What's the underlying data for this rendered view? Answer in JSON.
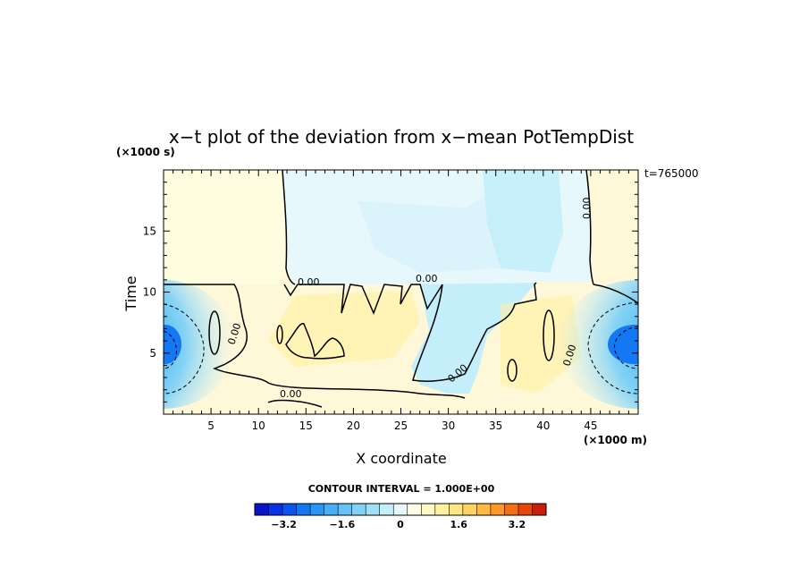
{
  "chart_data": {
    "type": "heatmap",
    "title": "x−t plot of the deviation from x−mean PotTempDist",
    "xlabel": "X coordinate",
    "ylabel": "Time",
    "x_unit": "(×1000 m)",
    "y_unit": "(×1000 s)",
    "time_stamp": "t=765000",
    "xlim": [
      0,
      50
    ],
    "ylim": [
      0,
      20
    ],
    "x_ticks": [
      5,
      10,
      15,
      20,
      25,
      30,
      35,
      40,
      45
    ],
    "y_ticks": [
      5,
      10,
      15
    ],
    "contour_label": "0.00",
    "contour_interval_text": "CONTOUR INTERVAL = 1.000E+00",
    "colorbar": {
      "min": -4.0,
      "max": 4.0,
      "step": 0.4,
      "tick_values": [
        -3.2,
        -1.6,
        0,
        1.6,
        3.2
      ],
      "tick_labels": [
        "−3.2",
        "−1.6",
        "0",
        "1.6",
        "3.2"
      ]
    },
    "colors": {
      "colormap": [
        "#0a14c8",
        "#0a32e6",
        "#0a55f0",
        "#1478f5",
        "#2896f5",
        "#46aff5",
        "#64c3f5",
        "#82d2f5",
        "#a0e1f8",
        "#c3eefa",
        "#e6f8fc",
        "#ffffe6",
        "#fff8c3",
        "#fff0a0",
        "#ffe682",
        "#ffd264",
        "#ffb946",
        "#ff9628",
        "#f56e14",
        "#e6460a",
        "#c81e0a"
      ]
    }
  }
}
